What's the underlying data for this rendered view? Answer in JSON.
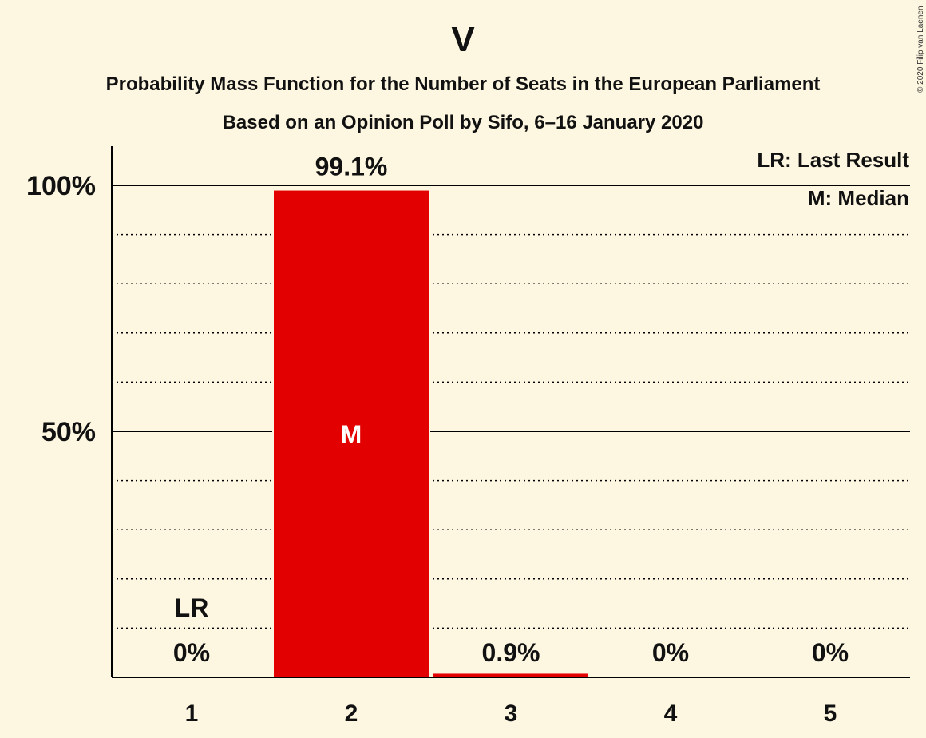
{
  "copyright": "© 2020 Filip van Laenen",
  "legend": {
    "last_result": "LR: Last Result",
    "median": "M: Median"
  },
  "colors": {
    "background": "#fdf6e0",
    "bar": "#e30000",
    "axis": "#000000"
  },
  "chart_data": {
    "type": "bar",
    "title": "V",
    "subtitle": "Probability Mass Function for the Number of Seats in the European Parliament",
    "subtitle2": "Based on an Opinion Poll by Sifo, 6–16 January 2020",
    "categories": [
      "1",
      "2",
      "3",
      "4",
      "5"
    ],
    "values": [
      0,
      99.1,
      0.9,
      0,
      0
    ],
    "data_labels": [
      "0%",
      "99.1%",
      "0.9%",
      "0%",
      "0%"
    ],
    "ylim": [
      0,
      110
    ],
    "yticks": [
      {
        "value": 50,
        "label": "50%"
      },
      {
        "value": 100,
        "label": "100%"
      }
    ],
    "minor_gridlines": [
      10,
      20,
      30,
      40,
      60,
      70,
      80,
      90
    ],
    "last_result": {
      "category": "1",
      "label": "LR"
    },
    "median": {
      "category": "2",
      "label": "M"
    },
    "legend_position": "top-right"
  }
}
